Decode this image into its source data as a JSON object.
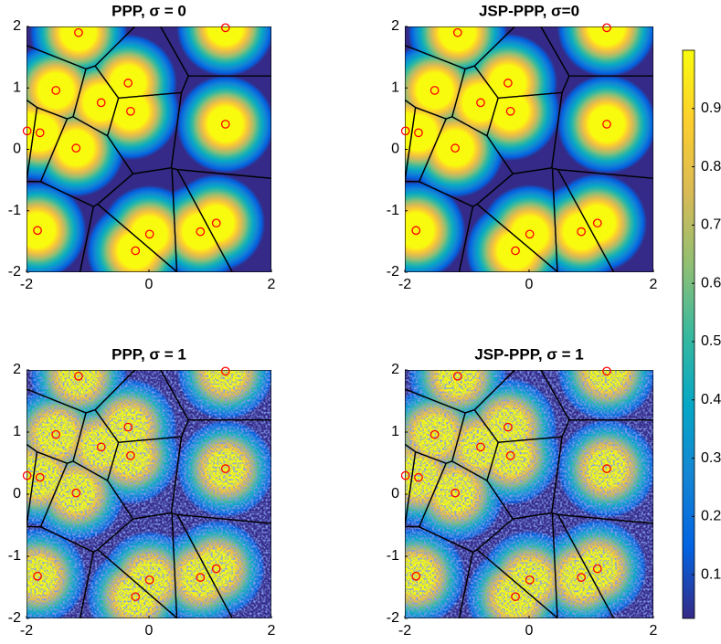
{
  "chart_data": [
    {
      "type": "scatter",
      "title": "PPP, σ = 0",
      "noise": false,
      "color": "#ff0000",
      "x": [
        -1.15,
        1.25,
        -1.52,
        -0.34,
        -0.3,
        -1.99,
        -1.78,
        -0.78,
        -1.19,
        1.25,
        -1.82,
        0.01,
        -0.22,
        0.84,
        1.1
      ],
      "y": [
        1.9,
        1.98,
        0.96,
        1.08,
        0.62,
        0.3,
        0.27,
        0.76,
        0.02,
        0.41,
        -1.32,
        -1.38,
        -1.65,
        -1.34,
        -1.2
      ],
      "xlim": [
        -2,
        2
      ],
      "ylim": [
        -2,
        2
      ],
      "xticks": [
        -2,
        0,
        2
      ],
      "yticks": [
        -2,
        -1,
        0,
        1,
        2
      ]
    },
    {
      "type": "scatter",
      "title": "JSP-PPP, σ=0",
      "noise": false,
      "color": "#ff0000",
      "x": [
        -1.15,
        1.25,
        -1.52,
        -0.34,
        -0.3,
        -1.99,
        -1.78,
        -0.78,
        -1.19,
        1.25,
        -1.82,
        0.01,
        -0.22,
        0.84,
        1.1
      ],
      "y": [
        1.9,
        1.98,
        0.96,
        1.08,
        0.62,
        0.3,
        0.27,
        0.76,
        0.02,
        0.41,
        -1.32,
        -1.38,
        -1.65,
        -1.34,
        -1.2
      ],
      "xlim": [
        -2,
        2
      ],
      "ylim": [
        -2,
        2
      ],
      "xticks": [
        -2,
        0,
        2
      ],
      "yticks": [
        -2,
        -1,
        0,
        1,
        2
      ]
    },
    {
      "type": "scatter",
      "title": "PPP, σ = 1",
      "noise": true,
      "color": "#ff0000",
      "x": [
        -1.15,
        1.25,
        -1.52,
        -0.34,
        -0.3,
        -1.99,
        -1.78,
        -0.78,
        -1.19,
        1.25,
        -1.82,
        0.01,
        -0.22,
        0.84,
        1.1
      ],
      "y": [
        1.9,
        1.98,
        0.96,
        1.08,
        0.62,
        0.3,
        0.27,
        0.76,
        0.02,
        0.41,
        -1.32,
        -1.38,
        -1.65,
        -1.34,
        -1.2
      ],
      "xlim": [
        -2,
        2
      ],
      "ylim": [
        -2,
        2
      ],
      "xticks": [
        -2,
        0,
        2
      ],
      "yticks": [
        -2,
        -1,
        0,
        1,
        2
      ]
    },
    {
      "type": "scatter",
      "title": "JSP-PPP, σ = 1",
      "noise": true,
      "color": "#ff0000",
      "x": [
        -1.15,
        1.25,
        -1.52,
        -0.34,
        -0.3,
        -1.99,
        -1.78,
        -0.78,
        -1.19,
        1.25,
        -1.82,
        0.01,
        -0.22,
        0.84,
        1.1
      ],
      "y": [
        1.9,
        1.98,
        0.96,
        1.08,
        0.62,
        0.3,
        0.27,
        0.76,
        0.02,
        0.41,
        -1.32,
        -1.38,
        -1.65,
        -1.34,
        -1.2
      ],
      "xlim": [
        -2,
        2
      ],
      "ylim": [
        -2,
        2
      ],
      "xticks": [
        -2,
        0,
        2
      ],
      "yticks": [
        -2,
        -1,
        0,
        1,
        2
      ]
    },
    {
      "type": "colorbar",
      "clim": [
        0.025,
        1
      ],
      "ticks": [
        0.1,
        0.2,
        0.3,
        0.4,
        0.5,
        0.6,
        0.7,
        0.8,
        0.9
      ],
      "colormap": [
        "#352a87",
        "#0363e1",
        "#1485d4",
        "#06a7c6",
        "#38b99e",
        "#92bf73",
        "#d9ba56",
        "#fcce2e",
        "#f9fb0e"
      ]
    }
  ]
}
